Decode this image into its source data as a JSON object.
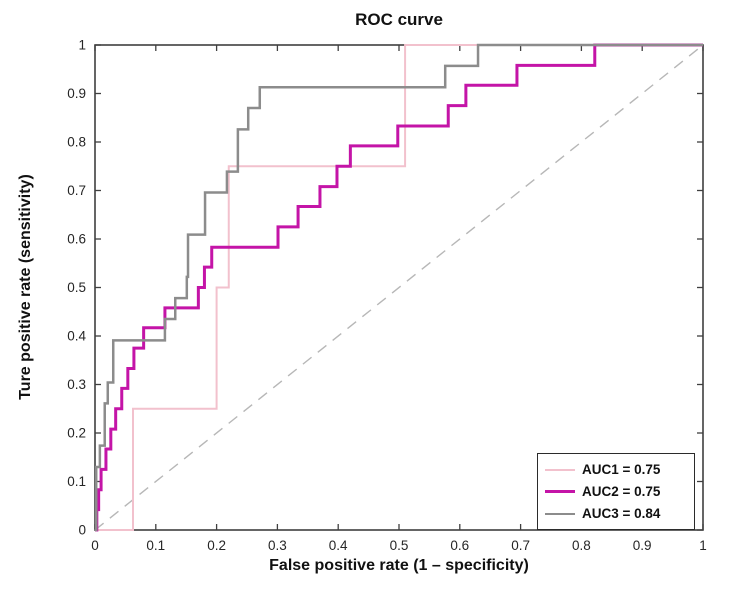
{
  "figure": {
    "background": "#ffffff"
  },
  "chart_data": {
    "type": "line",
    "subtype": "roc-step-curves",
    "title": "ROC curve",
    "xlabel": "False positive rate (1 – specificity)",
    "ylabel": "Ture positive rate (sensitivity)",
    "xlim": [
      0,
      1
    ],
    "ylim": [
      0,
      1
    ],
    "grid": false,
    "box": true,
    "tick_dir": "in",
    "axis_color": "#3f3f3f",
    "tick_label_color": "#262626",
    "x_ticks": [
      0,
      0.1,
      0.2,
      0.3,
      0.4,
      0.5,
      0.6,
      0.7,
      0.8,
      0.9,
      1
    ],
    "x_tick_labels": [
      "0",
      "0.1",
      "0.2",
      "0.3",
      "0.4",
      "0.5",
      "0.6",
      "0.7",
      "0.8",
      "0.9",
      "1"
    ],
    "y_ticks": [
      0,
      0.1,
      0.2,
      0.3,
      0.4,
      0.5,
      0.6,
      0.7,
      0.8,
      0.9,
      1
    ],
    "y_tick_labels": [
      "0",
      "0.1",
      "0.2",
      "0.3",
      "0.4",
      "0.5",
      "0.6",
      "0.7",
      "0.8",
      "0.9",
      "1"
    ],
    "legend_position": "bottom-right",
    "reference_line": {
      "name": "chance-diagonal",
      "style": "dashed",
      "color": "#b7b7b7",
      "from": [
        0,
        0
      ],
      "to": [
        1,
        1
      ]
    },
    "points_format": "steps = [fpr_x, tpr_after_vertical_rise]; curve starts at [0,0] and ends at [1, last_tpr]",
    "series": [
      {
        "name": "AUC1 = 0.75",
        "auc": 0.75,
        "color": "#F2C1CD",
        "line_width": 2,
        "steps": [
          [
            0.0625,
            0.25
          ],
          [
            0.2,
            0.5
          ],
          [
            0.22,
            0.75
          ],
          [
            0.51,
            1.0
          ]
        ]
      },
      {
        "name": "AUC2 = 0.75",
        "auc": 0.75,
        "color": "#C414A7",
        "line_width": 3,
        "steps": [
          [
            0.003,
            0.042
          ],
          [
            0.006,
            0.083
          ],
          [
            0.01,
            0.125
          ],
          [
            0.018,
            0.167
          ],
          [
            0.026,
            0.208
          ],
          [
            0.034,
            0.25
          ],
          [
            0.044,
            0.292
          ],
          [
            0.054,
            0.333
          ],
          [
            0.064,
            0.375
          ],
          [
            0.08,
            0.417
          ],
          [
            0.115,
            0.458
          ],
          [
            0.17,
            0.5
          ],
          [
            0.18,
            0.542
          ],
          [
            0.192,
            0.583
          ],
          [
            0.301,
            0.625
          ],
          [
            0.334,
            0.667
          ],
          [
            0.37,
            0.708
          ],
          [
            0.398,
            0.75
          ],
          [
            0.42,
            0.792
          ],
          [
            0.498,
            0.833
          ],
          [
            0.581,
            0.875
          ],
          [
            0.61,
            0.917
          ],
          [
            0.694,
            0.958
          ],
          [
            0.822,
            1.0
          ]
        ]
      },
      {
        "name": "AUC3 = 0.84",
        "auc": 0.84,
        "color": "#8C8C8C",
        "line_width": 2.5,
        "steps": [
          [
            0.002,
            0.13
          ],
          [
            0.008,
            0.174
          ],
          [
            0.016,
            0.261
          ],
          [
            0.021,
            0.304
          ],
          [
            0.03,
            0.391
          ],
          [
            0.115,
            0.435
          ],
          [
            0.132,
            0.478
          ],
          [
            0.151,
            0.522
          ],
          [
            0.153,
            0.609
          ],
          [
            0.181,
            0.696
          ],
          [
            0.217,
            0.739
          ],
          [
            0.235,
            0.826
          ],
          [
            0.252,
            0.87
          ],
          [
            0.271,
            0.913
          ],
          [
            0.576,
            0.957
          ],
          [
            0.63,
            1.0
          ]
        ]
      }
    ]
  }
}
